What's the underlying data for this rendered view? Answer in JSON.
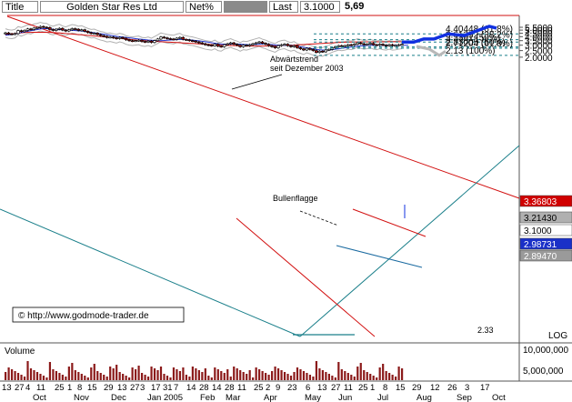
{
  "header": {
    "title_label": "Title",
    "title_value": "Golden Star Res Ltd",
    "mode": "Net%",
    "last_label": "Last",
    "last_value": "3.1000",
    "high_value": "5,69"
  },
  "chart_data": {
    "type": "candlestick",
    "y_scale": "log",
    "ylim": [
      2.05,
      5.75
    ],
    "y_ticks": [
      5.5,
      5.0,
      4.5,
      4.0,
      3.5,
      3.0,
      2.5,
      2.0
    ],
    "y_tick_labels": [
      "5.5000",
      "5.0000",
      "4.5000",
      "4.0000",
      "3.5000",
      "3.0000",
      "2.5000",
      "2.0000"
    ],
    "x_day_labels": [
      "13",
      "27",
      "4",
      "11",
      "25",
      "1",
      "8",
      "15",
      "29",
      "13",
      "27",
      "3",
      "17",
      "31",
      "7",
      "14",
      "28",
      "14",
      "28",
      "11",
      "25",
      "2",
      "9",
      "23",
      "6",
      "13",
      "27",
      "11",
      "25",
      "1",
      "8",
      "15",
      "29",
      "12",
      "26",
      "3",
      "17"
    ],
    "x_month_labels": [
      "Oct",
      "Nov",
      "Dec",
      "Jan 2005",
      "Feb",
      "Mar",
      "Apr",
      "May",
      "Jun",
      "Jul",
      "Aug",
      "Sep",
      "Oct"
    ],
    "price_tags": [
      "3.36803",
      "3.21430",
      "3.1000",
      "2.98731",
      "2.89470"
    ],
    "fib_levels": [
      {
        "price": 4.40448,
        "label": "4.40448 (61.8%)"
      },
      {
        "price": 3.61352,
        "label": "3.61352 (38.2%)"
      },
      {
        "price": 3.33,
        "label": "3.3301 (50%)"
      },
      {
        "price": 2.83005,
        "label": "2.83005 (50%)"
      },
      {
        "price": 2.71204,
        "label": "2.71204 (61.8%)"
      },
      {
        "price": 2.13,
        "label": "2.13 (100%)"
      }
    ],
    "low_label": "2.33",
    "peak_value": 5.69,
    "annotations": {
      "trend": [
        "Abwärtstrend",
        "seit Dezember 2003"
      ],
      "flag": "Bullenflagge",
      "copyright": "© http://www.godmode-trader.de"
    },
    "forecast_bull": [
      [
        442,
        3.33
      ],
      [
        455,
        3.33
      ],
      [
        466,
        3.7
      ],
      [
        477,
        3.7
      ],
      [
        493,
        4.4
      ],
      [
        510,
        4.15
      ],
      [
        538,
        5.69
      ],
      [
        546,
        5.35
      ]
    ],
    "forecast_bear": [
      [
        458,
        2.88
      ],
      [
        472,
        2.63
      ],
      [
        483,
        2.13
      ],
      [
        490,
        2.45
      ]
    ],
    "closes": [
      4.55,
      4.4,
      4.35,
      4.45,
      4.9,
      4.75,
      4.95,
      5.2,
      5.1,
      5.35,
      5.45,
      5.65,
      5.5,
      5.45,
      5.1,
      4.95,
      5.15,
      5.3,
      5.0,
      4.85,
      5.05,
      5.25,
      5.15,
      4.95,
      5.05,
      4.8,
      4.6,
      4.45,
      4.5,
      4.3,
      4.15,
      4.05,
      3.9,
      3.95,
      3.85,
      3.75,
      3.9,
      3.8,
      3.6,
      3.5,
      3.45,
      3.5,
      3.55,
      3.4,
      3.35,
      3.45,
      3.3,
      3.5,
      3.7,
      3.95,
      3.85,
      3.75,
      3.7,
      3.65,
      3.8,
      3.9,
      3.65,
      3.6,
      3.5,
      3.45,
      3.35,
      3.25,
      3.15,
      3.05,
      3.0,
      2.95,
      3.1,
      2.9,
      2.85,
      3.05,
      3.15,
      3.25,
      3.1,
      3.0,
      2.85,
      3.0,
      2.95,
      3.05,
      3.15,
      3.25,
      3.35,
      3.2,
      3.1,
      2.95,
      2.85,
      2.75,
      2.95,
      3.05,
      3.1,
      2.95,
      2.85,
      2.95,
      2.75,
      2.65,
      2.55,
      2.7,
      2.6,
      2.5,
      2.35,
      2.45,
      2.4,
      2.55,
      2.6,
      2.75,
      2.85,
      2.95,
      2.9,
      2.95,
      3.05,
      3.0,
      3.1,
      3.25,
      3.15,
      3.05,
      3.1,
      3.2,
      3.05,
      3.0,
      3.1,
      3.0,
      2.95,
      3.05,
      2.95,
      2.98,
      3.05,
      3.1
    ],
    "ma_red": [
      4.3,
      4.35,
      4.4,
      4.45,
      4.5,
      4.55,
      4.6,
      4.62,
      4.63,
      4.64,
      4.65,
      4.65,
      4.64,
      4.63,
      4.62,
      4.6,
      4.57,
      4.54,
      4.5,
      4.46,
      4.42,
      4.38,
      4.34,
      4.3,
      4.26,
      4.22,
      4.18,
      4.14,
      4.1,
      4.06,
      4.02,
      3.98,
      3.94,
      3.9,
      3.86,
      3.82,
      3.78,
      3.74,
      3.7,
      3.66,
      3.62,
      3.58,
      3.55,
      3.52,
      3.49,
      3.46,
      3.44,
      3.42,
      3.4,
      3.38,
      3.36,
      3.34,
      3.32,
      3.3,
      3.28,
      3.26,
      3.24,
      3.22,
      3.2,
      3.18,
      3.16,
      3.14,
      3.12,
      3.1,
      3.08,
      3.06,
      3.04,
      3.02,
      3.0,
      2.99,
      2.98,
      2.97,
      2.96,
      2.95,
      2.94,
      2.93,
      2.92,
      2.92,
      2.92,
      2.92,
      2.92,
      2.92,
      2.92,
      2.93,
      2.94,
      2.95,
      2.96,
      2.97,
      2.98,
      2.99,
      3.0,
      3.01,
      3.03,
      3.05,
      3.07,
      3.09,
      3.11,
      3.13,
      3.15,
      3.17,
      3.19,
      3.21,
      3.23,
      3.25,
      3.27,
      3.29,
      3.31,
      3.32,
      3.33,
      3.34,
      3.35,
      3.35,
      3.36,
      3.36,
      3.36,
      3.36,
      3.36,
      3.36,
      3.36,
      3.36,
      3.36,
      3.37,
      3.37,
      3.37,
      3.37,
      3.37,
      3.37,
      3.37
    ],
    "ma_blue": [
      4.2,
      4.25,
      4.3,
      4.4,
      4.5,
      4.6,
      4.7,
      4.8,
      4.9,
      5.0,
      5.1,
      5.2,
      5.25,
      5.25,
      5.2,
      5.15,
      5.1,
      5.08,
      5.05,
      5.0,
      4.98,
      4.95,
      4.92,
      4.88,
      4.84,
      4.78,
      4.72,
      4.65,
      4.58,
      4.5,
      4.42,
      4.35,
      4.28,
      4.2,
      4.12,
      4.05,
      4.0,
      3.95,
      3.9,
      3.85,
      3.8,
      3.75,
      3.7,
      3.66,
      3.62,
      3.58,
      3.55,
      3.52,
      3.5,
      3.5,
      3.52,
      3.55,
      3.58,
      3.6,
      3.62,
      3.64,
      3.64,
      3.62,
      3.6,
      3.56,
      3.52,
      3.48,
      3.43,
      3.38,
      3.32,
      3.26,
      3.21,
      3.16,
      3.12,
      3.1,
      3.1,
      3.11,
      3.12,
      3.12,
      3.1,
      3.08,
      3.06,
      3.05,
      3.06,
      3.08,
      3.1,
      3.12,
      3.12,
      3.1,
      3.06,
      3.02,
      3.0,
      2.99,
      2.98,
      2.97,
      2.96,
      2.94,
      2.9,
      2.85,
      2.8,
      2.75,
      2.7,
      2.65,
      2.6,
      2.57,
      2.55,
      2.55,
      2.56,
      2.58,
      2.62,
      2.66,
      2.7,
      2.74,
      2.78,
      2.82,
      2.86,
      2.9,
      2.93,
      2.95,
      2.97,
      2.98,
      2.99,
      3.0,
      3.0,
      3.0,
      3.0,
      3.0,
      3.0,
      3.0,
      2.99,
      2.99,
      2.99,
      2.99
    ],
    "volume_ticks": [
      "10,000,000",
      "5,000,000"
    ],
    "volume_label": "Volume",
    "scale_mode": "LOG"
  }
}
